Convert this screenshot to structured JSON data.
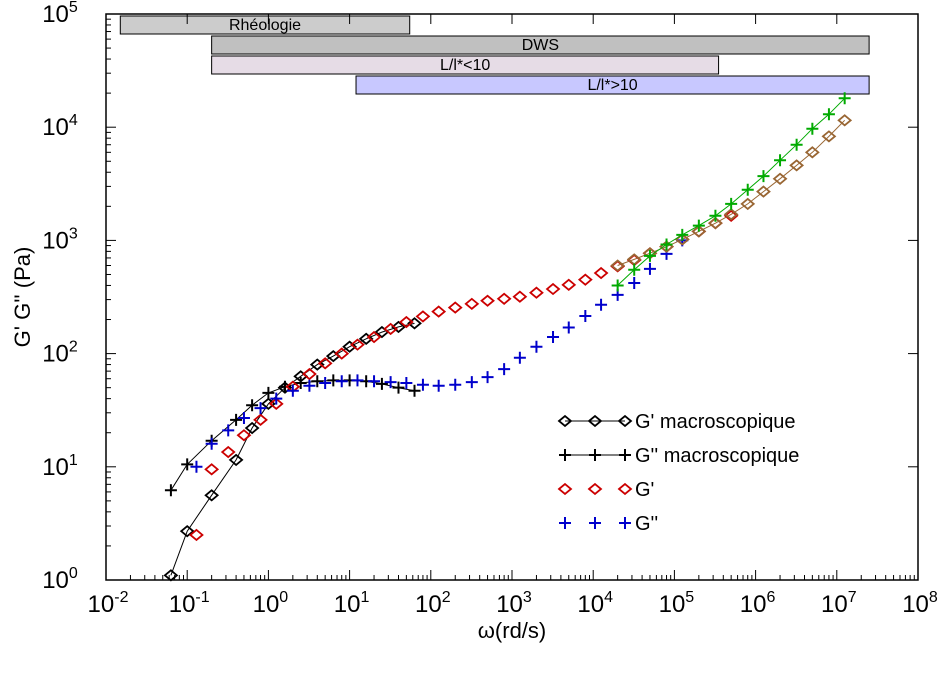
{
  "chart_data": {
    "type": "scatter",
    "title": "",
    "xlabel": "ω(rd/s)",
    "ylabel": "G' G'' (Pa)",
    "xscale": "log",
    "yscale": "log",
    "xlim": [
      0.01,
      100000000
    ],
    "ylim": [
      1,
      100000
    ],
    "x_ticks": [
      "10-2",
      "10-1",
      "100",
      "101",
      "102",
      "103",
      "104",
      "105",
      "106",
      "107",
      "108"
    ],
    "y_ticks": [
      "100",
      "101",
      "102",
      "103",
      "104",
      "105"
    ],
    "x_tick_base": "10",
    "x_tick_exps": [
      "-2",
      "-1",
      "0",
      "1",
      "2",
      "3",
      "4",
      "5",
      "6",
      "7",
      "8"
    ],
    "y_tick_base": "10",
    "y_tick_exps": [
      "0",
      "1",
      "2",
      "3",
      "4",
      "5"
    ],
    "grid": false,
    "legend_position": "lower-right",
    "bands": [
      {
        "label": "Rhéologie",
        "x": [
          0.015,
          55
        ],
        "color": "#cccccc"
      },
      {
        "label": "DWS",
        "x": [
          0.2,
          25000000
        ],
        "color": "#c0c0c0"
      },
      {
        "label": "L/l*<10",
        "x": [
          0.2,
          350000
        ],
        "color": "#e6dce6"
      },
      {
        "label": "L/l*>10",
        "x": [
          12,
          25000000
        ],
        "color": "#c8c8ff"
      }
    ],
    "series": [
      {
        "name": "G' macroscopique",
        "marker": "diamond-open",
        "line": true,
        "color": "#000000",
        "x": [
          0.063,
          0.1,
          0.2,
          0.4,
          0.63,
          1,
          1.6,
          2.5,
          4,
          6.3,
          10,
          16,
          25,
          40,
          63
        ],
        "y": [
          1.1,
          2.7,
          5.6,
          11.5,
          22,
          36,
          50,
          63,
          80,
          95,
          115,
          135,
          155,
          172,
          185
        ]
      },
      {
        "name": "G'' macroscopique",
        "marker": "plus",
        "line": true,
        "color": "#000000",
        "x": [
          0.063,
          0.1,
          0.2,
          0.4,
          0.63,
          1,
          1.6,
          2.5,
          4,
          6.3,
          10,
          16,
          25,
          40,
          63
        ],
        "y": [
          6.2,
          10.5,
          17,
          26,
          35,
          45,
          51,
          55,
          57,
          58,
          58,
          57,
          54,
          50,
          47
        ]
      },
      {
        "name": "G'",
        "marker": "diamond-open",
        "line": false,
        "color": "#cc0000",
        "x": [
          0.13,
          0.2,
          0.32,
          0.5,
          0.8,
          1.25,
          2,
          3.2,
          5,
          8,
          12.5,
          20,
          32,
          50,
          80,
          125,
          200,
          320,
          500,
          800,
          1250,
          2000,
          3200,
          5000,
          8000,
          12500,
          20000,
          32000,
          50000,
          80000,
          125000,
          200000,
          320000,
          500000
        ],
        "y": [
          2.5,
          9.5,
          13.5,
          19,
          26,
          36,
          51,
          66,
          82,
          100,
          120,
          140,
          165,
          190,
          213,
          235,
          255,
          275,
          293,
          305,
          318,
          345,
          372,
          405,
          450,
          515,
          590,
          670,
          770,
          880,
          1020,
          1200,
          1420,
          1650
        ]
      },
      {
        "name": "G''",
        "marker": "plus",
        "line": false,
        "color": "#0000cc",
        "x": [
          0.13,
          0.2,
          0.32,
          0.5,
          0.8,
          1.25,
          2,
          3.2,
          5,
          8,
          12.5,
          20,
          32,
          50,
          80,
          125,
          200,
          320,
          500,
          800,
          1250,
          2000,
          3200,
          5000,
          8000,
          12500,
          20000,
          32000,
          50000,
          80000,
          125000
        ],
        "y": [
          10,
          16,
          21,
          27,
          33,
          40,
          47,
          52,
          55,
          57,
          58,
          57,
          56,
          55,
          53,
          52,
          53,
          56,
          62,
          73,
          92,
          115,
          140,
          170,
          215,
          270,
          330,
          420,
          560,
          760,
          1000
        ]
      },
      {
        "name": "",
        "marker": "diamond-open",
        "line": true,
        "color": "#996633",
        "x": [
          20000,
          32000,
          50000,
          80000,
          125000,
          200000,
          320000,
          500000,
          800000,
          1250000,
          2000000,
          3200000,
          5000000,
          8000000,
          12500000
        ],
        "y": [
          600,
          680,
          770,
          880,
          1020,
          1200,
          1420,
          1700,
          2100,
          2700,
          3500,
          4600,
          6000,
          8300,
          11500
        ]
      },
      {
        "name": "",
        "marker": "plus",
        "line": true,
        "color": "#00aa00",
        "x": [
          20000,
          32000,
          50000,
          80000,
          125000,
          200000,
          320000,
          500000,
          800000,
          1250000,
          2000000,
          3200000,
          5000000,
          8000000,
          12500000
        ],
        "y": [
          400,
          550,
          730,
          920,
          1120,
          1350,
          1650,
          2100,
          2800,
          3700,
          5100,
          7000,
          9700,
          13000,
          18000
        ]
      }
    ],
    "legend": [
      {
        "label": "G' macroscopique",
        "marker": "diamond-open",
        "line": true,
        "color": "#000000"
      },
      {
        "label": "G'' macroscopique",
        "marker": "plus",
        "line": true,
        "color": "#000000"
      },
      {
        "label": "G'",
        "marker": "diamond-open",
        "line": false,
        "color": "#cc0000"
      },
      {
        "label": "G''",
        "marker": "plus",
        "line": false,
        "color": "#0000cc"
      }
    ]
  }
}
